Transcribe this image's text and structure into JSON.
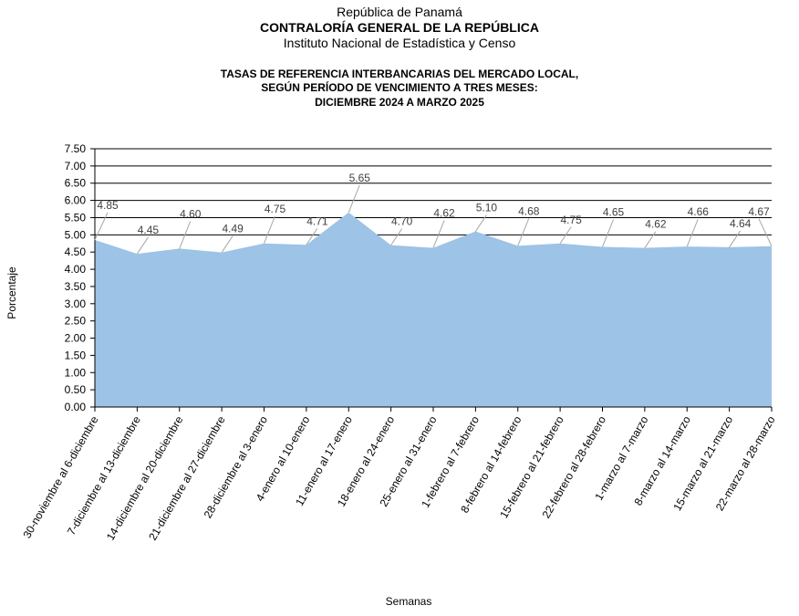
{
  "header": {
    "line1": "República de Panamá",
    "line2": "CONTRALORÍA GENERAL DE LA REPÚBLICA",
    "line3": "Instituto Nacional de Estadística y Censo"
  },
  "chart_data": {
    "type": "area",
    "title_lines": [
      "TASAS DE REFERENCIA INTERBANCARIAS DEL MERCADO LOCAL,",
      "SEGÚN PERÍODO DE VENCIMIENTO A TRES MESES:",
      "DICIEMBRE  2024 A MARZO  2025"
    ],
    "xlabel": "Semanas",
    "ylabel": "Porcentaje",
    "ylim": [
      0,
      7.5
    ],
    "yticks": [
      "0.00",
      "0.50",
      "1.00",
      "1.50",
      "2.00",
      "2.50",
      "3.00",
      "3.50",
      "4.00",
      "4.50",
      "5.00",
      "5.50",
      "6.00",
      "6.50",
      "7.00",
      "7.50"
    ],
    "grid": true,
    "categories": [
      "30-noviembre al 6-diciembre",
      "7-diciembre al 13-diciembre",
      "14-diciembre al 20-diciembre",
      "21-diciembre al 27-diciembre",
      "28-diciembre al 3-enero",
      "4-enero al 10-enero",
      "11-enero al 17-enero",
      "18-enero al 24-enero",
      "25-enero al 31-enero",
      "1-febrero al 7-febrero",
      "8-febrero al 14-febrero",
      "15-febrero al 21-febrero",
      "22-febrero al 28-febrero",
      "1-marzo al 7-marzo",
      "8-marzo al 14-marzo",
      "15-marzo al 21-marzo",
      "22-marzo al 28-marzo"
    ],
    "values": [
      4.85,
      4.45,
      4.6,
      4.49,
      4.75,
      4.71,
      5.65,
      4.7,
      4.62,
      5.1,
      4.68,
      4.75,
      4.65,
      4.62,
      4.66,
      4.64,
      4.67
    ],
    "value_labels": [
      "4.85",
      "4.45",
      "4.60",
      "4.49",
      "4.75",
      "4.71",
      "5.65",
      "4.70",
      "4.62",
      "5.10",
      "4.68",
      "4.75",
      "4.65",
      "4.62",
      "4.66",
      "4.64",
      "4.67"
    ],
    "colors": {
      "area": "#9dc3e6",
      "grid": "#000000",
      "label": "#404040",
      "leader": "#a6a6a6"
    }
  }
}
